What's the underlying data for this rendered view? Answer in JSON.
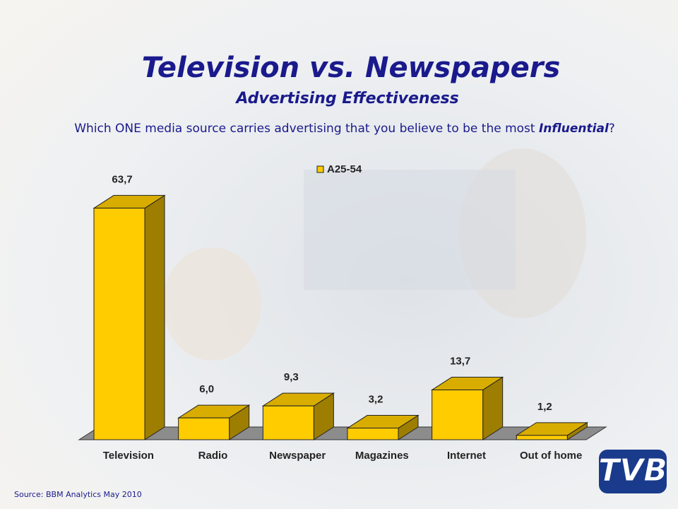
{
  "chart_data": {
    "type": "bar3d",
    "title": "Television vs. Newspapers",
    "subtitle": "Advertising Effectiveness",
    "question": [
      "Which ONE media source carries advertising that you believe to be the most ",
      "Influential",
      "?"
    ],
    "categories": [
      "Television",
      "Radio",
      "Newspaper",
      "Magazines",
      "Internet",
      "Out of home"
    ],
    "series": [
      {
        "name": "A25-54",
        "color": "#ffcc00",
        "values": [
          63.7,
          6.0,
          9.3,
          3.2,
          13.7,
          1.2
        ],
        "value_labels": [
          "63,7",
          "6,0",
          "9,3",
          "3,2",
          "13,7",
          "1,2"
        ]
      }
    ],
    "ylim": [
      0,
      70
    ],
    "source": "Source: BBM Analytics May 2010",
    "logo": "TVB"
  }
}
